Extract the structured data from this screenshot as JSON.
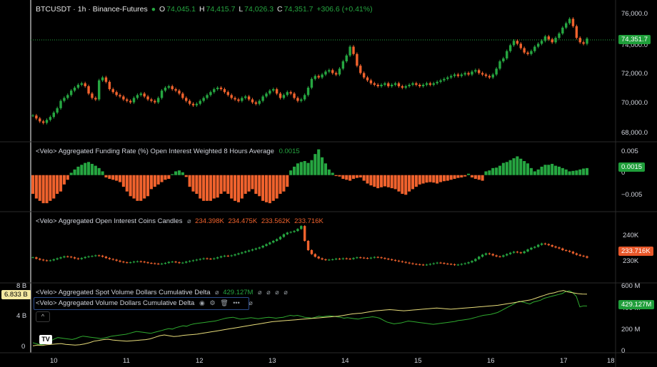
{
  "header": {
    "symbol": "BTCUSDT · 1h · Binance-Futures",
    "o_label": "O",
    "o": "74,045.1",
    "h_label": "H",
    "h": "74,415.7",
    "l_label": "L",
    "l": "74,026.3",
    "c_label": "C",
    "c": "74,351.7",
    "change": "+306.6 (+0.41%)"
  },
  "colors": {
    "up": "#26a641",
    "down": "#f0622d",
    "spot_line": "#2faa2f",
    "agg_line": "#e8dd7a"
  },
  "panes": {
    "price": {
      "last_tag": "74,351.7",
      "ticks": [
        "76,000.0",
        "74,000.0",
        "72,000.0",
        "70,000.0",
        "68,000.0"
      ]
    },
    "funding": {
      "title": "<Velo> Aggregated Funding Rate (%) Open Interest Weighted 8 Hours Average",
      "value": "0.0015",
      "tag": "0.0015",
      "ticks": [
        "0.005",
        "0",
        "−0.005"
      ]
    },
    "oi": {
      "title": "<Velo> Aggregated Open Interest Coins Candles",
      "o": "234.398K",
      "h": "234.475K",
      "l": "233.562K",
      "c": "233.716K",
      "tag": "233.716K",
      "ticks": [
        "240K",
        "230K"
      ]
    },
    "cvd": {
      "spot_title": "<Velo> Aggregated Spot Volume Dollars Cumulative Delta",
      "spot_value": "429.127M",
      "agg_title": "<Velo> Aggregated Volume Dollars Cumulative Delta",
      "tag_right": "429.127M",
      "tag_left": "6.833 B",
      "ticks_right": [
        "600 M",
        "400 M",
        "200 M",
        "0"
      ],
      "ticks_left": [
        "8 B",
        "4 B",
        "0"
      ]
    }
  },
  "xaxis": {
    "labels": [
      "10",
      "11",
      "12",
      "13",
      "14",
      "15",
      "16",
      "17",
      "18"
    ]
  },
  "logo_text": "TV",
  "chart_data": {
    "type": "candlestick",
    "price_series": {
      "name": "BTCUSDT · 1h · Binance-Futures",
      "ylim": [
        67500,
        76500
      ],
      "close": [
        69100,
        68900,
        68700,
        68600,
        68800,
        69000,
        69300,
        69600,
        70100,
        70300,
        70500,
        70800,
        71000,
        71200,
        71300,
        71100,
        70600,
        70300,
        70200,
        71500,
        71700,
        71400,
        70900,
        70700,
        70500,
        70400,
        70200,
        70100,
        70000,
        70300,
        70500,
        70600,
        70400,
        70200,
        70100,
        70000,
        70300,
        70800,
        71000,
        71100,
        70900,
        70800,
        70600,
        70300,
        70100,
        69900,
        69800,
        69900,
        70100,
        70300,
        70500,
        70700,
        70900,
        71000,
        70900,
        70700,
        70500,
        70300,
        70200,
        70100,
        70300,
        70400,
        70200,
        70000,
        69900,
        70100,
        70400,
        70600,
        70800,
        70900,
        70600,
        70300,
        70500,
        70700,
        70600,
        70300,
        70100,
        70200,
        70500,
        71000,
        71600,
        71800,
        71700,
        71900,
        72100,
        72200,
        72000,
        71900,
        72300,
        72800,
        73200,
        73800,
        73300,
        72500,
        72000,
        71700,
        71500,
        71300,
        71200,
        71100,
        71200,
        71300,
        71100,
        71200,
        71300,
        71100,
        71000,
        71100,
        71200,
        71300,
        71200,
        71100,
        71200,
        71300,
        71200,
        71300,
        71400,
        71500,
        71600,
        71700,
        71800,
        71900,
        71800,
        71900,
        72000,
        71900,
        72100,
        72200,
        72000,
        71900,
        71800,
        71700,
        71900,
        72300,
        72800,
        73000,
        73500,
        73900,
        74200,
        74000,
        73700,
        73400,
        73300,
        73500,
        73800,
        74000,
        74200,
        74500,
        74300,
        74100,
        74400,
        74700,
        75100,
        75400,
        75700,
        75200,
        74400,
        74100,
        74000,
        74351.7
      ],
      "note": "Approximate hourly closes read from gridlines"
    },
    "funding_rate": {
      "name": "<Velo> Aggregated Funding Rate (%) Open Interest Weighted 8 Hours Average",
      "ylim": [
        -0.0075,
        0.0065
      ],
      "values": [
        -0.004,
        -0.005,
        -0.0055,
        -0.006,
        -0.006,
        -0.0055,
        -0.005,
        -0.004,
        -0.0035,
        -0.002,
        -0.001,
        0.0005,
        0.0012,
        0.0018,
        0.0022,
        0.0026,
        0.0028,
        0.0024,
        0.002,
        0.0015,
        0.0008,
        -0.0005,
        -0.0008,
        -0.001,
        -0.0012,
        -0.0015,
        -0.0025,
        -0.0035,
        -0.0045,
        -0.005,
        -0.0055,
        -0.0055,
        -0.005,
        -0.0045,
        -0.003,
        -0.0025,
        -0.002,
        -0.0015,
        -0.001,
        -0.0008,
        0.0002,
        0.0008,
        0.001,
        0.0006,
        -0.0004,
        -0.0025,
        -0.0035,
        -0.004,
        -0.005,
        -0.0055,
        -0.0055,
        -0.0055,
        -0.005,
        -0.0048,
        -0.004,
        -0.0035,
        -0.004,
        -0.005,
        -0.0055,
        -0.0058,
        -0.005,
        -0.004,
        -0.0035,
        -0.003,
        -0.004,
        -0.0045,
        -0.0055,
        -0.0058,
        -0.006,
        -0.0055,
        -0.005,
        -0.004,
        -0.0035,
        -0.0025,
        0.001,
        0.0018,
        0.0025,
        0.0028,
        0.003,
        0.0026,
        0.0032,
        0.0045,
        0.0055,
        0.0038,
        0.0025,
        0.0012,
        0.0005,
        -0.0002,
        -0.0003,
        -0.0008,
        -0.001,
        -0.0012,
        -0.0008,
        -0.0006,
        -0.0005,
        -0.0012,
        -0.0018,
        -0.0022,
        -0.0025,
        -0.0028,
        -0.0026,
        -0.0024,
        -0.0026,
        -0.0028,
        -0.003,
        -0.0035,
        -0.004,
        -0.0042,
        -0.0035,
        -0.003,
        -0.0025,
        -0.002,
        -0.0018,
        -0.0016,
        -0.0015,
        -0.0016,
        -0.0018,
        -0.0015,
        -0.0013,
        -0.0012,
        -0.001,
        -0.0008,
        -0.0006,
        -0.0005,
        -0.0003,
        0.0003,
        -0.0005,
        -0.0008,
        -0.001,
        -0.0012,
        0.0008,
        0.001,
        0.0015,
        0.0016,
        0.002,
        0.0026,
        0.0028,
        0.0032,
        0.0036,
        0.004,
        0.0035,
        0.003,
        0.0025,
        0.0015,
        0.0008,
        0.0012,
        0.0018,
        0.0022,
        0.0022,
        0.0024,
        0.002,
        0.0018,
        0.0015,
        0.0012,
        0.0008,
        0.0009,
        0.001,
        0.0012,
        0.0014,
        0.0015
      ]
    },
    "open_interest": {
      "name": "<Velo> Aggregated Open Interest Coins Candles",
      "ylim": [
        226500,
        247000
      ],
      "close": [
        233800,
        233400,
        233100,
        232900,
        232800,
        232900,
        233200,
        233500,
        233800,
        234100,
        234000,
        233800,
        233500,
        233300,
        233600,
        233900,
        234100,
        234200,
        234400,
        234300,
        234000,
        233600,
        233300,
        233100,
        232800,
        232500,
        232300,
        232200,
        232300,
        232500,
        232600,
        232500,
        232300,
        232100,
        232000,
        231900,
        231800,
        231900,
        232100,
        232400,
        232500,
        232300,
        232100,
        232200,
        232500,
        232700,
        232900,
        233100,
        233300,
        233500,
        233400,
        233300,
        233500,
        233800,
        234100,
        234300,
        234200,
        234400,
        234700,
        235000,
        235300,
        235600,
        235900,
        236200,
        236500,
        236800,
        237300,
        237800,
        238300,
        238800,
        239300,
        240000,
        240800,
        241300,
        241500,
        241800,
        242400,
        243300,
        238800,
        236000,
        234800,
        234000,
        233500,
        233200,
        233000,
        233100,
        233200,
        233400,
        233300,
        233500,
        233400,
        233300,
        233600,
        233800,
        233700,
        233600,
        233500,
        233700,
        233900,
        233800,
        233600,
        233400,
        233200,
        233000,
        232800,
        232600,
        232400,
        232200,
        232000,
        231800,
        231700,
        231600,
        231500,
        231600,
        231800,
        232000,
        232200,
        232100,
        231900,
        231800,
        231700,
        231500,
        231600,
        231800,
        232000,
        232300,
        232700,
        233300,
        234000,
        234600,
        235000,
        234800,
        234400,
        234100,
        234000,
        234400,
        234800,
        235200,
        235500,
        235300,
        235100,
        235600,
        236200,
        236700,
        237000,
        237600,
        238000,
        237800,
        237500,
        237100,
        236800,
        236500,
        236000,
        235800,
        235500,
        235000,
        234600,
        234300,
        234100,
        233716
      ]
    },
    "spot_cvd": {
      "name": "<Velo> Aggregated Spot Volume Dollars Cumulative Delta",
      "ylim": [
        -50,
        650
      ],
      "values": [
        40,
        30,
        20,
        25,
        35,
        60,
        80,
        95,
        90,
        85,
        80,
        75,
        85,
        100,
        110,
        105,
        100,
        95,
        90,
        85,
        90,
        100,
        110,
        115,
        120,
        125,
        130,
        140,
        150,
        160,
        155,
        150,
        145,
        140,
        150,
        160,
        170,
        180,
        190,
        185,
        200,
        210,
        220,
        215,
        230,
        240,
        245,
        250,
        255,
        260,
        265,
        270,
        280,
        290,
        300,
        305,
        310,
        300,
        290,
        295,
        300,
        305,
        300,
        295,
        300,
        305,
        310,
        305,
        300,
        305,
        310,
        320,
        330,
        325,
        330,
        320,
        310,
        305,
        300,
        310,
        320,
        315,
        320,
        325,
        320,
        315,
        310,
        300,
        305,
        300,
        295,
        290,
        300,
        305,
        310,
        315,
        310,
        300,
        280,
        260,
        250,
        240,
        245,
        250,
        260,
        270,
        265,
        260,
        255,
        250,
        245,
        240,
        235,
        240,
        245,
        250,
        255,
        260,
        265,
        275,
        280,
        285,
        290,
        300,
        310,
        320,
        330,
        335,
        340,
        350,
        360,
        380,
        400,
        420,
        440,
        460,
        480,
        470,
        460,
        450,
        470,
        480,
        490,
        510,
        520,
        530,
        540,
        550,
        560,
        580,
        590,
        570,
        530,
        420,
        430,
        429
      ]
    },
    "agg_cvd": {
      "name": "<Velo> Aggregated Volume Dollars Cumulative Delta",
      "ylim": [
        -0.5,
        8
      ],
      "values": [
        0.2,
        0.3,
        0.25,
        0.35,
        0.4,
        0.45,
        0.5,
        0.4,
        0.35,
        0.3,
        0.35,
        0.45,
        0.6,
        0.8,
        0.9,
        1.0,
        1.05,
        0.95,
        0.9,
        0.85,
        0.8,
        0.85,
        0.9,
        0.95,
        1.0,
        1.1,
        1.3,
        1.5,
        1.6,
        1.5,
        1.4,
        1.45,
        1.55,
        1.6,
        1.65,
        1.7,
        1.8,
        1.9,
        2.0,
        2.1,
        2.2,
        2.3,
        2.4,
        2.5,
        2.6,
        2.7,
        2.8,
        2.9,
        3.0,
        3.1,
        3.2,
        3.3,
        3.35,
        3.4,
        3.45,
        3.5,
        3.55,
        3.6,
        3.65,
        3.7,
        3.75,
        3.8,
        3.85,
        3.9,
        3.95,
        4.0,
        4.1,
        4.2,
        4.3,
        4.35,
        4.4,
        4.5,
        4.6,
        4.7,
        4.75,
        4.8,
        4.85,
        4.8,
        4.75,
        4.7,
        4.75,
        4.8,
        4.85,
        4.9,
        4.95,
        5.0,
        5.05,
        5.0,
        4.95,
        4.9,
        4.95,
        5.0,
        5.05,
        5.1,
        5.15,
        5.2,
        5.25,
        5.3,
        5.35,
        5.4,
        5.5,
        5.6,
        5.7,
        5.8,
        5.9,
        6.0,
        6.1,
        6.3,
        6.5,
        6.7,
        6.9,
        7.0,
        7.2,
        7.3,
        7.1,
        7.0,
        6.9,
        6.85,
        6.833
      ]
    }
  }
}
